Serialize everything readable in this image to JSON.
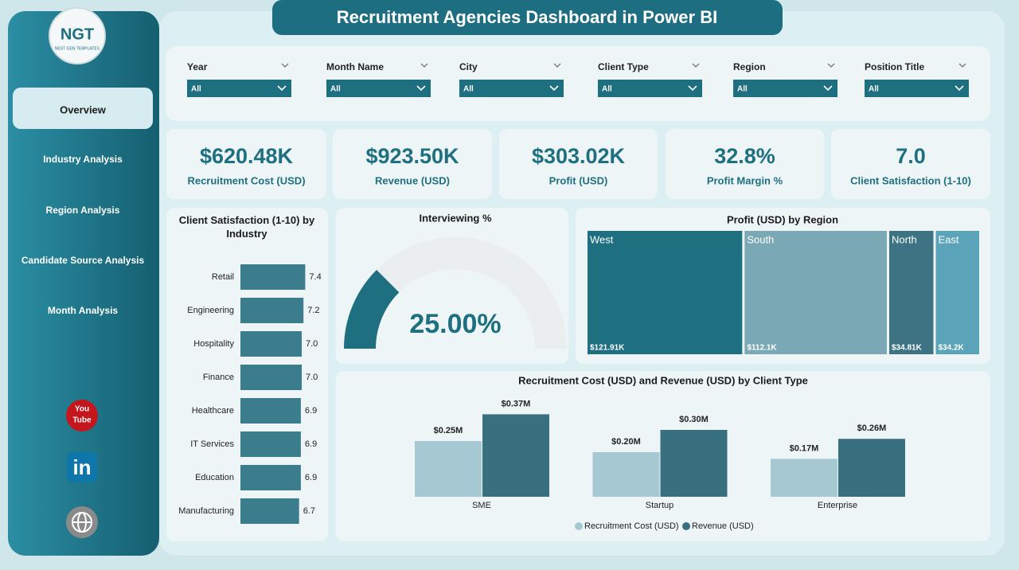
{
  "logo": {
    "mark": "NGT",
    "tagline": "NEXT GEN TEMPLATES"
  },
  "header": {
    "title": "Recruitment Agencies Dashboard in Power BI"
  },
  "nav": [
    "Overview",
    "Industry Analysis",
    "Region Analysis",
    "Candidate Source Analysis",
    "Month Analysis"
  ],
  "social": {
    "youtube": [
      "You",
      "Tube"
    ],
    "linkedin": "in"
  },
  "filters": [
    {
      "label": "Year",
      "value": "All"
    },
    {
      "label": "Month Name",
      "value": "All"
    },
    {
      "label": "City",
      "value": "All"
    },
    {
      "label": "Client Type",
      "value": "All"
    },
    {
      "label": "Region",
      "value": "All"
    },
    {
      "label": "Position Title",
      "value": "All"
    }
  ],
  "kpis": [
    {
      "value": "$620.48K",
      "label": "Recruitment Cost (USD)"
    },
    {
      "value": "$923.50K",
      "label": "Revenue (USD)"
    },
    {
      "value": "$303.02K",
      "label": "Profit (USD)"
    },
    {
      "value": "32.8%",
      "label": "Profit Margin %"
    },
    {
      "value": "7.0",
      "label": "Client Satisfaction (1-10)"
    }
  ],
  "chart_data": [
    {
      "type": "hbar",
      "title": "Client Satisfaction (1-10) by Industry",
      "categories": [
        "Retail",
        "Engineering",
        "Hospitality",
        "Finance",
        "Healthcare",
        "IT Services",
        "Education",
        "Manufacturing"
      ],
      "values": [
        7.4,
        7.2,
        7.0,
        7.0,
        6.9,
        6.9,
        6.9,
        6.7
      ],
      "value_labels": [
        "7.4",
        "7.2",
        "7.0",
        "7.0",
        "6.9",
        "6.9",
        "6.9",
        "6.7"
      ],
      "color": "#3b7d8c",
      "xlim": [
        0,
        10
      ]
    },
    {
      "type": "gauge",
      "title": "Interviewing %",
      "values": [
        25
      ],
      "value_labels": [
        "25.00%"
      ],
      "ylim": [
        0,
        100
      ],
      "color": "#1e6f80"
    },
    {
      "type": "treemap",
      "title": "Profit (USD) by Region",
      "categories": [
        "West",
        "South",
        "North",
        "East"
      ],
      "values": [
        121910,
        112100,
        34810,
        34200
      ],
      "value_labels": [
        "$121.91K",
        "$112.1K",
        "$34.81K",
        "$34.2K"
      ],
      "colors": [
        "#1e6f80",
        "#7aa9b5",
        "#3d7383",
        "#5aa3b8"
      ]
    },
    {
      "type": "grouped_bar",
      "title": "Recruitment Cost (USD) and Revenue (USD) by Client Type",
      "categories": [
        "SME",
        "Startup",
        "Enterprise"
      ],
      "series": [
        {
          "name": "Recruitment Cost (USD)",
          "color": "#a6c8d2",
          "values": [
            250000,
            200000,
            170000
          ],
          "value_labels": [
            "$0.25M",
            "$0.20M",
            "$0.17M"
          ]
        },
        {
          "name": "Revenue (USD)",
          "color": "#38707f",
          "values": [
            370000,
            300000,
            260000
          ],
          "value_labels": [
            "$0.37M",
            "$0.30M",
            "$0.26M"
          ]
        }
      ],
      "ylim": [
        0,
        400000
      ]
    }
  ]
}
